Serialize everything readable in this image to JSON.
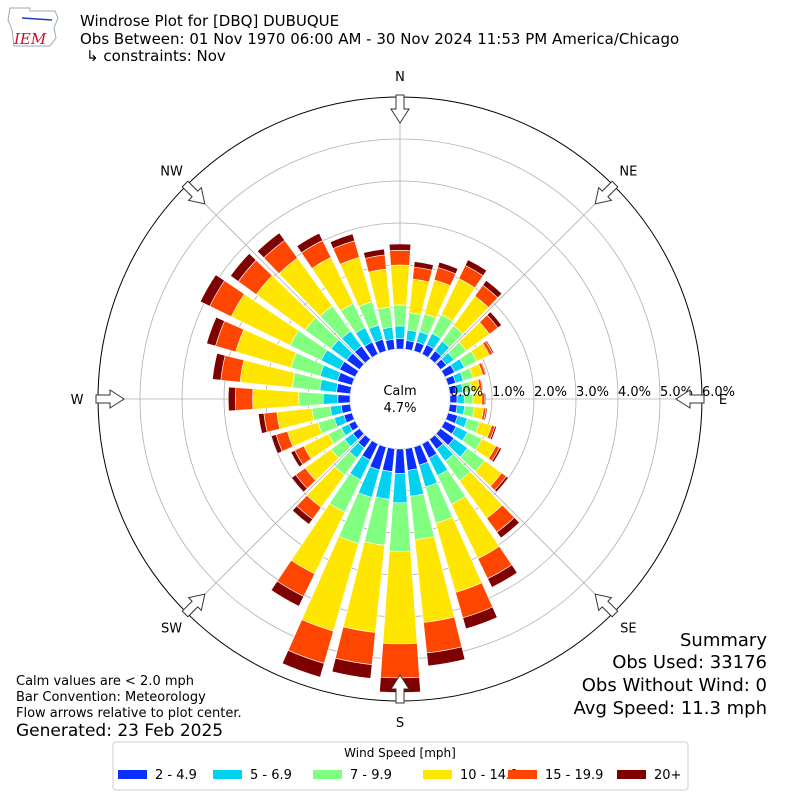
{
  "chart_data": {
    "type": "windrose",
    "logo_text": "IEM",
    "title": "Windrose Plot for [DBQ] DUBUQUE",
    "subtitle": "Obs Between: 01 Nov 1970 06:00 AM - 30 Nov 2024 11:53 PM America/Chicago",
    "constraints": "↳ constraints: Nov",
    "compass": [
      "N",
      "NE",
      "E",
      "SE",
      "S",
      "SW",
      "W",
      "NW"
    ],
    "x": [
      0,
      10,
      20,
      30,
      40,
      50,
      60,
      70,
      80,
      90,
      100,
      110,
      120,
      130,
      140,
      150,
      160,
      170,
      180,
      190,
      200,
      210,
      220,
      230,
      240,
      250,
      260,
      270,
      280,
      290,
      300,
      310,
      320,
      330,
      340,
      350
    ],
    "rlim": [
      0,
      6
    ],
    "rticks": [
      {
        "value": 0,
        "label": "0.0%"
      },
      {
        "value": 1,
        "label": "1.0%"
      },
      {
        "value": 2,
        "label": "2.0%"
      },
      {
        "value": 3,
        "label": "3.0%"
      },
      {
        "value": 4,
        "label": "4.0%"
      },
      {
        "value": 5,
        "label": "5.0%"
      },
      {
        "value": 6,
        "label": "6.0%"
      }
    ],
    "calm": {
      "label": "Calm",
      "value": 4.7,
      "value_label": "4.7%"
    },
    "legend_title": "Wind Speed [mph]",
    "series": [
      {
        "name": "2 - 4.9",
        "color": "#0a2eff",
        "values": [
          0.25,
          0.21,
          0.22,
          0.25,
          0.23,
          0.18,
          0.26,
          0.19,
          0.16,
          0.17,
          0.18,
          0.24,
          0.3,
          0.4,
          0.29,
          0.38,
          0.45,
          0.52,
          0.58,
          0.55,
          0.57,
          0.43,
          0.25,
          0.2,
          0.17,
          0.2,
          0.22,
          0.29,
          0.33,
          0.36,
          0.41,
          0.38,
          0.37,
          0.32,
          0.29,
          0.24
        ]
      },
      {
        "name": "5 - 6.9",
        "color": "#00d2f0",
        "values": [
          0.3,
          0.25,
          0.26,
          0.3,
          0.28,
          0.22,
          0.26,
          0.19,
          0.16,
          0.17,
          0.18,
          0.24,
          0.3,
          0.4,
          0.35,
          0.46,
          0.54,
          0.62,
          0.7,
          0.66,
          0.68,
          0.52,
          0.3,
          0.24,
          0.2,
          0.24,
          0.26,
          0.35,
          0.4,
          0.43,
          0.49,
          0.46,
          0.44,
          0.38,
          0.35,
          0.29
        ]
      },
      {
        "name": "7 - 9.9",
        "color": "#80ff80",
        "values": [
          0.5,
          0.42,
          0.44,
          0.5,
          0.46,
          0.36,
          0.33,
          0.24,
          0.2,
          0.21,
          0.23,
          0.3,
          0.38,
          0.5,
          0.58,
          0.76,
          0.9,
          1.04,
          1.16,
          1.1,
          1.14,
          0.86,
          0.5,
          0.4,
          0.34,
          0.4,
          0.44,
          0.58,
          0.66,
          0.72,
          0.82,
          0.76,
          0.74,
          0.64,
          0.58,
          0.48
        ]
      },
      {
        "name": "10 - 14.9",
        "color": "#ffe600",
        "values": [
          0.95,
          0.8,
          0.84,
          0.95,
          0.87,
          0.68,
          0.33,
          0.24,
          0.2,
          0.21,
          0.22,
          0.3,
          0.37,
          0.5,
          1.1,
          1.44,
          1.71,
          1.98,
          2.2,
          2.09,
          2.17,
          1.63,
          0.95,
          0.76,
          0.65,
          0.76,
          0.84,
          1.1,
          1.25,
          1.37,
          1.56,
          1.44,
          1.41,
          1.22,
          1.1,
          0.91
        ]
      },
      {
        "name": "15 - 19.9",
        "color": "#ff4600",
        "values": [
          0.35,
          0.29,
          0.31,
          0.35,
          0.32,
          0.25,
          0.09,
          0.07,
          0.06,
          0.06,
          0.06,
          0.08,
          0.1,
          0.14,
          0.41,
          0.53,
          0.63,
          0.73,
          0.81,
          0.77,
          0.8,
          0.6,
          0.35,
          0.28,
          0.24,
          0.28,
          0.31,
          0.41,
          0.46,
          0.5,
          0.57,
          0.53,
          0.52,
          0.45,
          0.41,
          0.34
        ]
      },
      {
        "name": "20+",
        "color": "#7f0000",
        "values": [
          0.15,
          0.13,
          0.13,
          0.15,
          0.14,
          0.11,
          0.03,
          0.02,
          0.02,
          0.03,
          0.03,
          0.04,
          0.05,
          0.06,
          0.17,
          0.23,
          0.27,
          0.31,
          0.35,
          0.33,
          0.34,
          0.26,
          0.15,
          0.12,
          0.1,
          0.12,
          0.13,
          0.17,
          0.2,
          0.22,
          0.25,
          0.23,
          0.22,
          0.19,
          0.17,
          0.14
        ]
      }
    ],
    "summary": {
      "title": "Summary",
      "lines": [
        "Obs Used: 33176",
        "Obs Without Wind: 0",
        "Avg Speed: 11.3 mph"
      ]
    },
    "notes": [
      "Calm values are < 2.0 mph",
      "Bar Convention: Meteorology",
      "Flow arrows relative to plot center."
    ],
    "generated": "Generated: 23 Feb 2025"
  }
}
